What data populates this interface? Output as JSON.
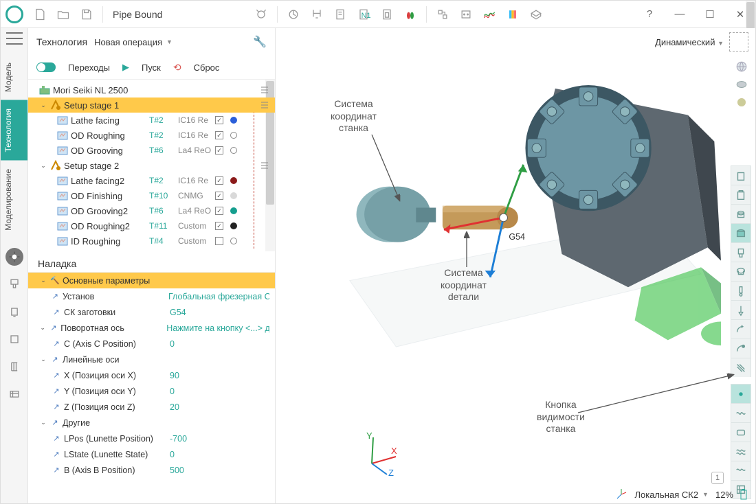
{
  "title": "Pipe Bound",
  "window_buttons": {
    "help": "?",
    "min": "—",
    "max": "☐",
    "close": "✕"
  },
  "side_tabs": [
    "Модель",
    "Технология",
    "Моделирование"
  ],
  "side_tab_active_index": 1,
  "panel": {
    "title": "Технология",
    "new_op": "Новая операция",
    "controls": {
      "transitions": "Переходы",
      "start": "Пуск",
      "reset": "Сброс"
    }
  },
  "tree": {
    "machine": "Mori Seiki NL 2500",
    "setups": [
      {
        "label": "Setup stage 1",
        "expanded": true,
        "selected": true,
        "ops": [
          {
            "label": "Lathe facing",
            "t": "T#2",
            "insert": "IC16 Re",
            "dot": "#2b5fd9"
          },
          {
            "label": "OD Roughing",
            "t": "T#2",
            "insert": "IC16 Re",
            "dot": "#ffffff",
            "ring": true
          },
          {
            "label": "OD Grooving",
            "t": "T#6",
            "insert": "La4 ReO",
            "dot": "#ffffff",
            "ring": true
          }
        ]
      },
      {
        "label": "Setup stage 2",
        "expanded": true,
        "ops": [
          {
            "label": "Lathe facing2",
            "t": "T#2",
            "insert": "IC16 Re",
            "dot": "#8b1a1a"
          },
          {
            "label": "OD Finishing",
            "t": "T#10",
            "insert": "CNMG",
            "dot": "#d9d9d9"
          },
          {
            "label": "OD Grooving2",
            "t": "T#6",
            "insert": "La4 ReO",
            "dot": "#159e8e"
          },
          {
            "label": "OD Roughing2",
            "t": "T#11",
            "insert": "Custom",
            "dot": "#222"
          },
          {
            "label": "ID Roughing",
            "t": "T#4",
            "insert": "Custom",
            "dot": "#ffffff",
            "ring": true,
            "nocheck": true
          }
        ]
      }
    ]
  },
  "setup_section": {
    "title": "Наладка",
    "groups": [
      {
        "header": "Основные параметры",
        "rows": [
          {
            "label": "Установ",
            "value": "Глобальная фрезерная СК"
          },
          {
            "label": "СК заготовки",
            "value": "G54"
          }
        ]
      },
      {
        "header": "Поворотная ось",
        "hint": true,
        "value": "Нажмите на кнопку <...> для",
        "rows": [
          {
            "label": "C (Axis C Position)",
            "value": "0"
          }
        ]
      },
      {
        "header": "Линейные оси",
        "rows": [
          {
            "label": "X (Позиция оси X)",
            "value": "90"
          },
          {
            "label": "Y (Позиция оси Y)",
            "value": "0"
          },
          {
            "label": "Z (Позиция оси Z)",
            "value": "20"
          }
        ]
      },
      {
        "header": "Другие",
        "rows": [
          {
            "label": "LPos (Lunette Position)",
            "value": "-700"
          },
          {
            "label": "LState (Lunette State)",
            "value": "0"
          },
          {
            "label": "B (Axis B Position)",
            "value": "500"
          }
        ]
      }
    ]
  },
  "viewport": {
    "mode": "Динамический",
    "annotations": {
      "machine_cs": "Система\nкоординат\nстанка",
      "part_cs": "Система\nкоординат\ndетали",
      "vis_btn": "Кнопка\nвидимости\nстанка",
      "g54": "G54"
    },
    "status": {
      "cs": "Локальная СК2",
      "zoom": "12%"
    },
    "colors": {
      "turret": "#6d96a4",
      "turret_dark": "#3c5763",
      "body": "#5e6870",
      "chuck": "#8fb7bd",
      "part": "#c49a5a",
      "tailstock": "#46c552",
      "bed": "#e9eef0",
      "x": "#e03131",
      "y": "#2f9e44",
      "z": "#1c7ed6"
    }
  }
}
